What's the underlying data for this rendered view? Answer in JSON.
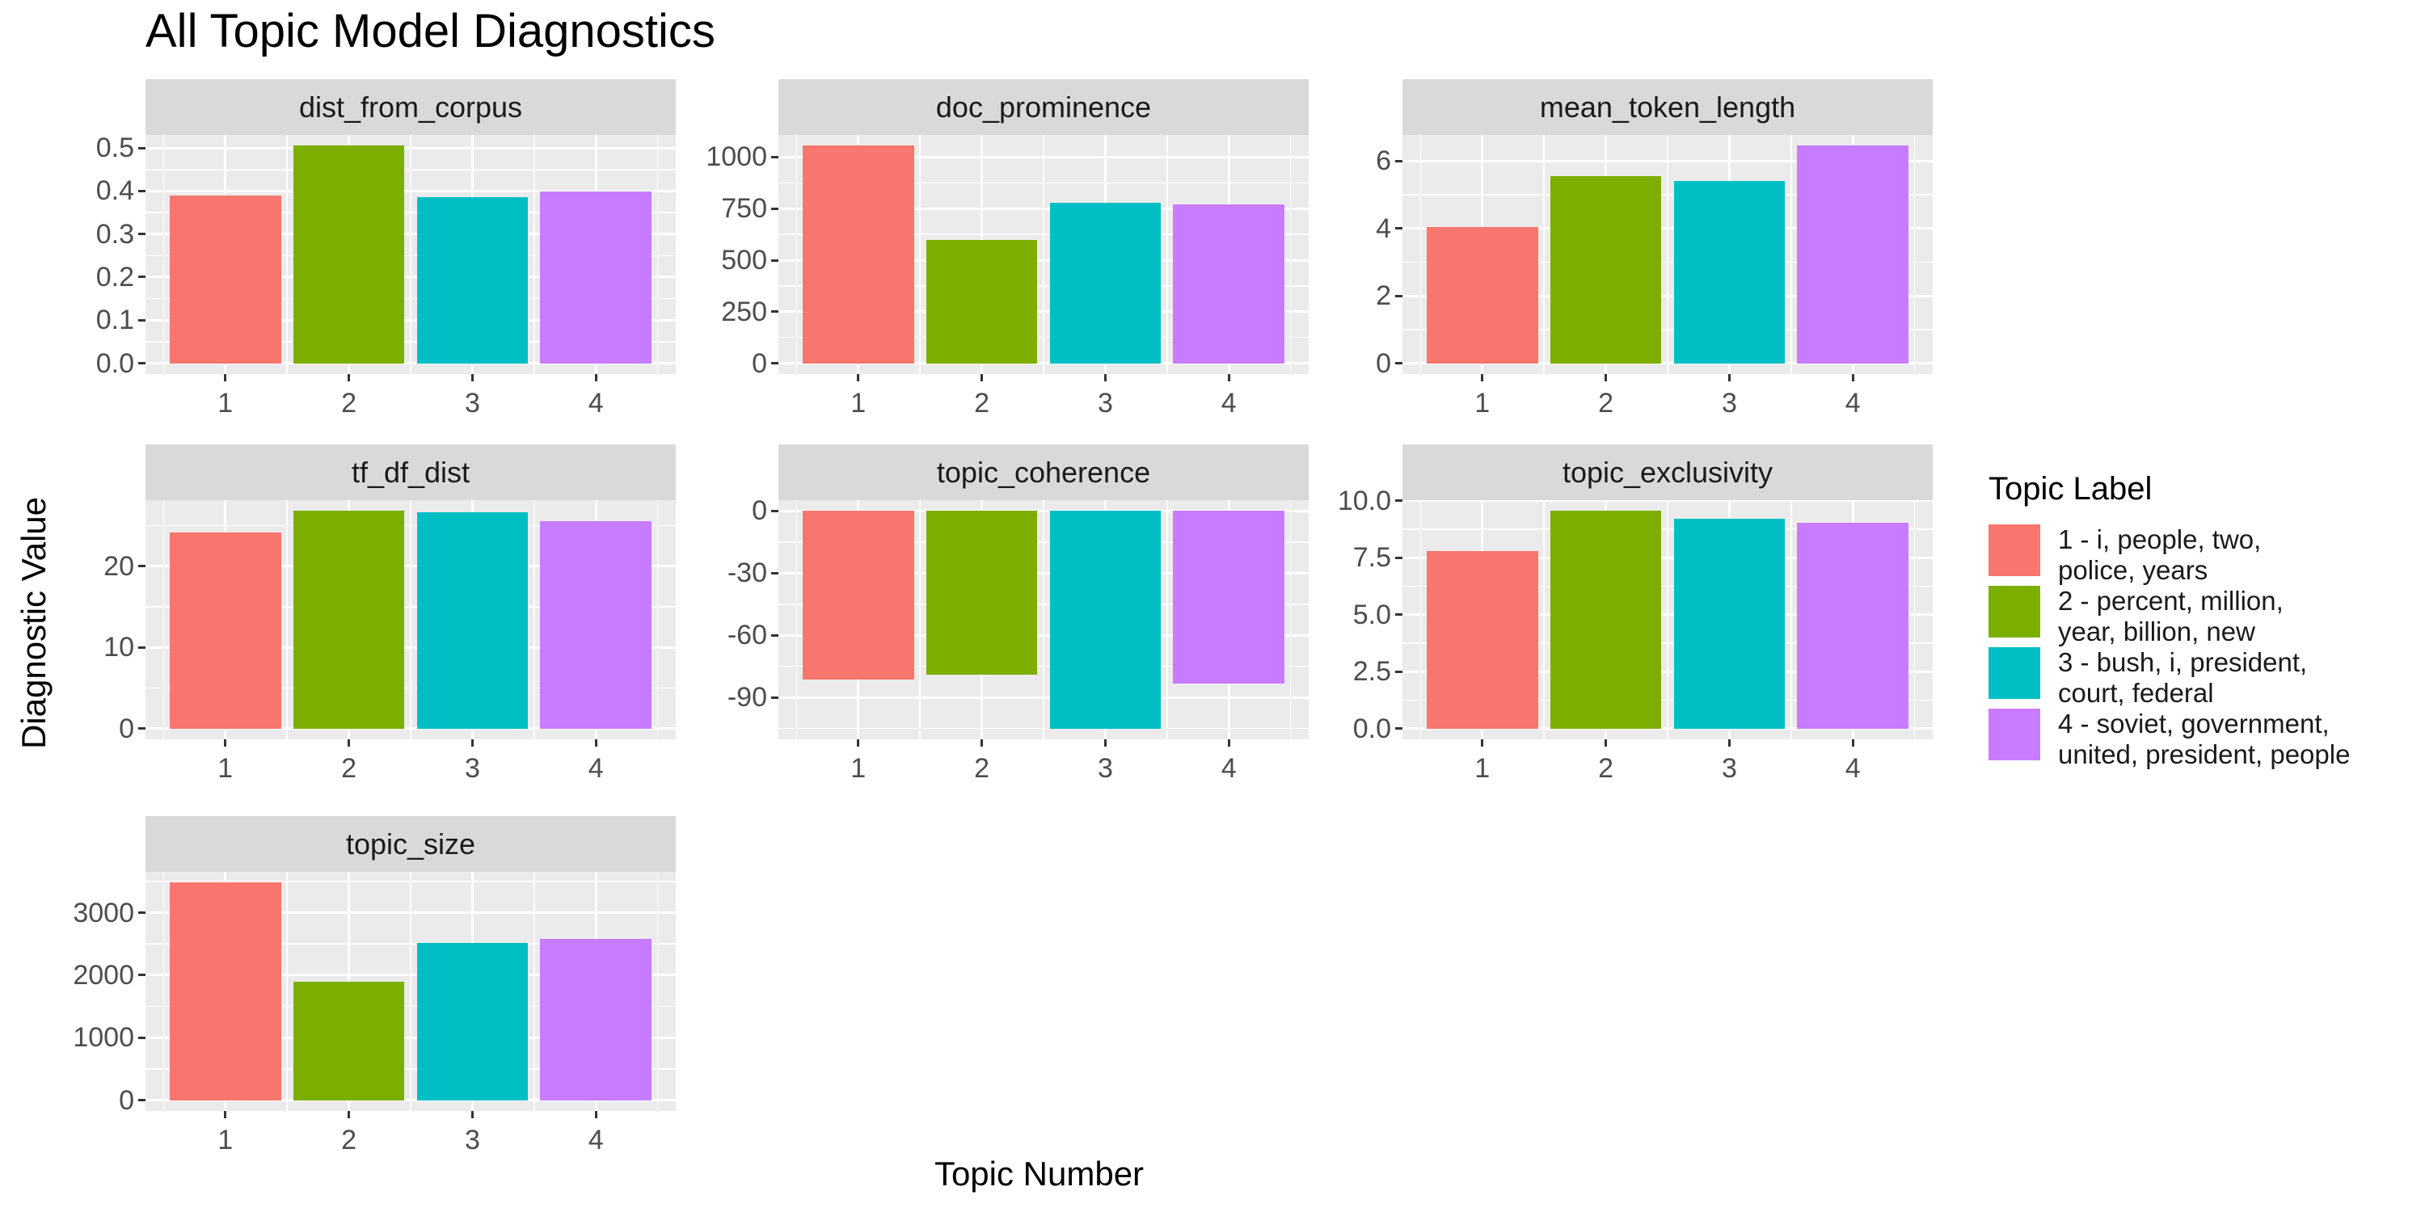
{
  "title": "All Topic Model Diagnostics",
  "axes": {
    "x_title": "Topic Number",
    "y_title": "Diagnostic Value"
  },
  "legend": {
    "title": "Topic Label",
    "entries": [
      {
        "color": "#F8766D",
        "lines": [
          "1 - i, people, two,",
          "police, years"
        ]
      },
      {
        "color": "#7CAE00",
        "lines": [
          "2 - percent, million,",
          "year, billion, new"
        ]
      },
      {
        "color": "#00BFC4",
        "lines": [
          "3 - bush, i, president,",
          "court, federal"
        ]
      },
      {
        "color": "#C77CFF",
        "lines": [
          "4 - soviet, government,",
          "united, president, people"
        ]
      }
    ]
  },
  "chart_data": {
    "type": "bar",
    "title": "All Topic Model Diagnostics",
    "xlabel": "Topic Number",
    "ylabel": "Diagnostic Value",
    "categories": [
      "1",
      "2",
      "3",
      "4"
    ],
    "palette": [
      "#F8766D",
      "#7CAE00",
      "#00BFC4",
      "#C77CFF"
    ],
    "legend_title": "Topic Label",
    "legend_position": "right",
    "grid": true,
    "facet_layout": {
      "columns": 3,
      "rows": 3
    },
    "facets": [
      {
        "name": "dist_from_corpus",
        "values": [
          0.39,
          0.505,
          0.385,
          0.398
        ],
        "ticks": [
          0.0,
          0.1,
          0.2,
          0.3,
          0.4,
          0.5
        ],
        "tick_labels": [
          "0.0",
          "0.1",
          "0.2",
          "0.3",
          "0.4",
          "0.5"
        ],
        "ylim": [
          -0.0253,
          0.5303
        ]
      },
      {
        "name": "doc_prominence",
        "values": [
          1055,
          598,
          779,
          769
        ],
        "ticks": [
          0,
          250,
          500,
          750,
          1000
        ],
        "tick_labels": [
          "0",
          "250",
          "500",
          "750",
          "1000"
        ],
        "ylim": [
          -52.75,
          1107.75
        ]
      },
      {
        "name": "mean_token_length",
        "values": [
          4.05,
          5.55,
          5.4,
          6.45
        ],
        "ticks": [
          0,
          2,
          4,
          6
        ],
        "tick_labels": [
          "0",
          "2",
          "4",
          "6"
        ],
        "ylim": [
          -0.3225,
          6.7725
        ]
      },
      {
        "name": "tf_df_dist",
        "values": [
          24.2,
          26.8,
          26.6,
          25.6
        ],
        "ticks": [
          0,
          10,
          20
        ],
        "tick_labels": [
          "0",
          "10",
          "20"
        ],
        "ylim": [
          -1.34,
          28.14
        ]
      },
      {
        "name": "topic_coherence",
        "values": [
          -81.5,
          -79,
          -105,
          -83.5
        ],
        "ticks": [
          -90,
          -60,
          -30,
          0
        ],
        "tick_labels": [
          "-90",
          "-60",
          "-30",
          "0"
        ],
        "ylim": [
          -110.25,
          5.25
        ]
      },
      {
        "name": "topic_exclusivity",
        "values": [
          7.8,
          9.55,
          9.2,
          9.05
        ],
        "ticks": [
          0,
          2.5,
          5,
          7.5,
          10
        ],
        "tick_labels": [
          "0.0",
          "2.5",
          "5.0",
          "7.5",
          "10.0"
        ],
        "ylim": [
          -0.4775,
          10.0275
        ]
      },
      {
        "name": "topic_size",
        "values": [
          3480,
          1900,
          2510,
          2580
        ],
        "ticks": [
          0,
          1000,
          2000,
          3000
        ],
        "tick_labels": [
          "0",
          "1000",
          "2000",
          "3000"
        ],
        "ylim": [
          -174,
          3654
        ]
      }
    ]
  },
  "theme": {
    "panel_bg": "#EBEBEB",
    "strip_bg": "#D9D9D9",
    "strip_text": "#1A1A1A",
    "grid_color": "#FFFFFF",
    "tick_label_color": "#4D4D4D",
    "tick_mark_color": "#333333"
  }
}
